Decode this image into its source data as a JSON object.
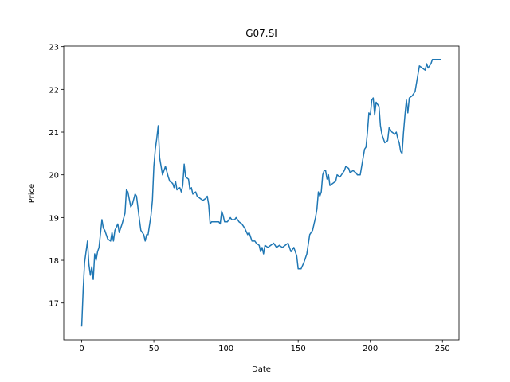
{
  "chart_data": {
    "type": "line",
    "title": "G07.SI",
    "x_label": "Date",
    "y_label": "Price",
    "series": [
      {
        "name": "G07.SI",
        "color": "#1f77b4",
        "x": [
          0,
          1,
          2,
          3,
          4,
          5,
          6,
          7,
          8,
          9,
          10,
          11,
          12,
          14,
          15,
          16,
          18,
          20,
          21,
          22,
          23,
          25,
          26,
          28,
          30,
          31,
          32,
          34,
          35,
          37,
          38,
          40,
          41,
          43,
          44,
          45,
          46,
          48,
          49,
          50,
          51,
          52,
          53,
          54,
          56,
          58,
          60,
          61,
          63,
          64,
          65,
          66,
          68,
          69,
          70,
          71,
          72,
          74,
          75,
          76,
          77,
          79,
          80,
          82,
          84,
          86,
          87,
          88,
          89,
          90,
          93,
          95,
          96,
          97,
          98,
          99,
          101,
          103,
          104,
          106,
          107,
          109,
          111,
          113,
          115,
          116,
          118,
          120,
          121,
          123,
          124,
          125,
          126,
          127,
          129,
          131,
          133,
          135,
          137,
          139,
          141,
          143,
          145,
          147,
          149,
          150,
          152,
          154,
          156,
          158,
          160,
          162,
          163,
          164,
          165,
          166,
          167,
          168,
          169,
          170,
          171,
          172,
          174,
          176,
          177,
          179,
          181,
          182,
          183,
          185,
          186,
          188,
          190,
          191,
          193,
          194,
          196,
          197,
          198,
          199,
          200,
          201,
          202,
          203,
          204,
          206,
          207,
          208,
          209,
          210,
          212,
          213,
          214,
          215,
          217,
          218,
          219,
          220,
          221,
          222,
          223,
          224,
          225,
          226,
          227,
          229,
          231,
          233,
          234,
          236,
          238,
          239,
          240,
          242,
          243,
          245,
          249
        ],
        "values": [
          16.45,
          17.3,
          17.95,
          18.2,
          18.45,
          17.9,
          17.65,
          17.85,
          17.55,
          18.15,
          18.0,
          18.2,
          18.3,
          18.95,
          18.75,
          18.7,
          18.5,
          18.45,
          18.65,
          18.45,
          18.7,
          18.85,
          18.65,
          18.85,
          19.1,
          19.65,
          19.6,
          19.25,
          19.3,
          19.55,
          19.5,
          18.95,
          18.7,
          18.6,
          18.45,
          18.6,
          18.6,
          19.05,
          19.4,
          20.2,
          20.6,
          20.85,
          21.15,
          20.4,
          20.0,
          20.2,
          19.95,
          19.85,
          19.8,
          19.7,
          19.85,
          19.65,
          19.7,
          19.6,
          19.75,
          20.25,
          19.95,
          19.9,
          19.65,
          19.7,
          19.55,
          19.6,
          19.5,
          19.45,
          19.4,
          19.45,
          19.5,
          19.3,
          18.85,
          18.9,
          18.9,
          18.9,
          18.85,
          19.15,
          19.05,
          18.9,
          18.9,
          19.0,
          18.95,
          18.95,
          19.0,
          18.9,
          18.85,
          18.75,
          18.6,
          18.65,
          18.45,
          18.45,
          18.4,
          18.35,
          18.2,
          18.3,
          18.15,
          18.35,
          18.3,
          18.35,
          18.4,
          18.3,
          18.35,
          18.3,
          18.35,
          18.4,
          18.2,
          18.3,
          18.1,
          17.8,
          17.8,
          17.95,
          18.15,
          18.6,
          18.7,
          19.0,
          19.2,
          19.6,
          19.5,
          19.6,
          20.0,
          20.1,
          20.1,
          19.9,
          20.0,
          19.75,
          19.8,
          19.85,
          20.0,
          19.95,
          20.05,
          20.1,
          20.2,
          20.15,
          20.05,
          20.1,
          20.05,
          20.0,
          20.0,
          20.2,
          20.6,
          20.65,
          21.0,
          21.45,
          21.4,
          21.75,
          21.8,
          21.4,
          21.7,
          21.6,
          21.15,
          20.95,
          20.85,
          20.75,
          20.8,
          21.1,
          21.05,
          21.0,
          20.95,
          21.0,
          20.85,
          20.75,
          20.55,
          20.5,
          21.0,
          21.4,
          21.75,
          21.45,
          21.8,
          21.85,
          21.95,
          22.35,
          22.55,
          22.5,
          22.45,
          22.6,
          22.5,
          22.6,
          22.7,
          22.7,
          22.7
        ]
      }
    ],
    "xlim": [
      -12.45,
      261.45
    ],
    "ylim": [
      16.1375,
      23.0125
    ],
    "xticks": [
      0,
      50,
      100,
      150,
      200,
      250
    ],
    "yticks": [
      17,
      18,
      19,
      20,
      21,
      22,
      23
    ]
  }
}
